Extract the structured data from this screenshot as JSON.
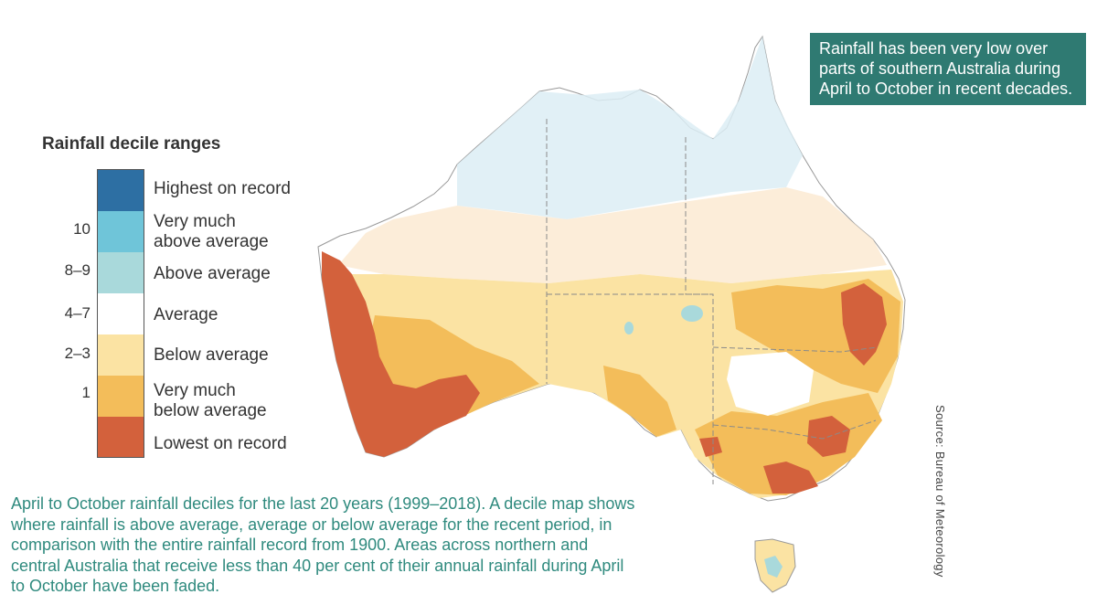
{
  "top_cut_text": "",
  "callout": {
    "text": "Rainfall has been very low over parts of southern Australia during April to October in recent decades."
  },
  "legend": {
    "title": "Rainfall decile ranges",
    "items": [
      {
        "number": "",
        "label": "Highest on record",
        "color": "#2d6fa3"
      },
      {
        "number": "10",
        "label": "Very much above average",
        "color": "#6fc5d9"
      },
      {
        "number": "8–9",
        "label": "Above average",
        "color": "#a9d9db"
      },
      {
        "number": "4–7",
        "label": "Average",
        "color": "#ffffff"
      },
      {
        "number": "2–3",
        "label": "Below average",
        "color": "#fbe3a3"
      },
      {
        "number": "1",
        "label": "Very much below average",
        "color": "#f3bd5a"
      },
      {
        "number": "",
        "label": "Lowest on record",
        "color": "#d3613c"
      }
    ]
  },
  "caption": "April to October rainfall deciles for the last 20 years (1999–2018). A decile map shows where rainfall is above average, average or below average for the recent period, in comparison with the entire rainfall record from 1900. Areas across northern and central Australia that receive less than 40 per cent of their annual rainfall during April to October have been faded.",
  "source": "Source: Bureau of Meteorology",
  "map_colors": {
    "faded_blue": "#dcedf4",
    "faded_orange": "#fbe9cf",
    "below": "#fbe3a3",
    "very_below": "#f3bd5a",
    "lowest": "#d3613c",
    "above": "#a9d9db",
    "border": "#888888"
  }
}
